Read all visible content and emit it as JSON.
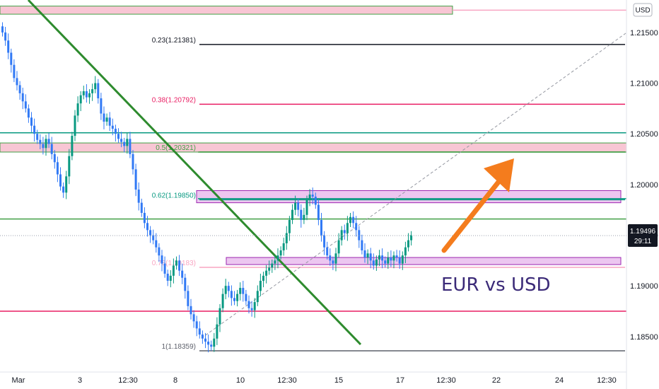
{
  "chart_data": {
    "type": "candlestick",
    "title": "",
    "currency": "USD",
    "annotation": "EUR vs USD",
    "ylim": [
      1.1815,
      1.2182
    ],
    "y_ticks": [
      "1.21500",
      "1.21000",
      "1.20500",
      "1.20000",
      "1.19500",
      "1.19000",
      "1.18500"
    ],
    "x_ticks": [
      "Mar",
      "3",
      "12:30",
      "8",
      "10",
      "12:30",
      "15",
      "17",
      "12:30",
      "22",
      "24",
      "12:30"
    ],
    "last_price": "1.19496",
    "countdown": "29:11",
    "fib_levels": [
      {
        "label": "0.23(1.21381)",
        "value": 1.21381,
        "color": "#131722"
      },
      {
        "label": "0.38(1.20792)",
        "value": 1.20792,
        "color": "#e91e63"
      },
      {
        "label": "0.5(1.20321)",
        "value": 1.20321,
        "color": "#43a047"
      },
      {
        "label": "0.62(1.19850)",
        "value": 1.1985,
        "color": "#089981"
      },
      {
        "label": "0.78(1.19183)",
        "value": 1.19183,
        "color": "#f8a5c2"
      },
      {
        "label": "1(1.18359)",
        "value": 1.18359,
        "color": "#5d606b"
      }
    ],
    "horizontal_levels": [
      {
        "value": 1.2172,
        "color": "#f8a5c2"
      },
      {
        "value": 1.2051,
        "color": "#089981"
      },
      {
        "value": 1.2032,
        "color": "#43a047"
      },
      {
        "value": 1.1986,
        "color": "#089981"
      },
      {
        "value": 1.1966,
        "color": "#43a047"
      },
      {
        "value": 1.1875,
        "color": "#e91e63"
      }
    ],
    "zones": [
      {
        "from": 1.2168,
        "to": 1.2176,
        "fill": "#f8c6d4",
        "stroke": "#43a047"
      },
      {
        "from": 1.2032,
        "to": 1.2041,
        "fill": "#f8c6d4",
        "stroke": "#43a047"
      },
      {
        "from": 1.1982,
        "to": 1.1994,
        "fill": "#ecc6f0",
        "stroke": "#9c27b0"
      },
      {
        "from": 1.1921,
        "to": 1.1928,
        "fill": "#ecc6f0",
        "stroke": "#9c27b0"
      }
    ],
    "close_series": [
      1.215,
      1.2142,
      1.213,
      1.2118,
      1.2105,
      1.2098,
      1.209,
      1.2082,
      1.2075,
      1.2066,
      1.2058,
      1.205,
      1.2044,
      1.204,
      1.2036,
      1.2045,
      1.204,
      1.203,
      1.2022,
      1.201,
      1.1998,
      1.1992,
      1.2008,
      1.2028,
      1.2048,
      1.2068,
      1.208,
      1.2088,
      1.2092,
      1.2086,
      1.209,
      1.2094,
      1.21,
      1.2085,
      1.207,
      1.2062,
      1.2066,
      1.2058,
      1.2055,
      1.205,
      1.2045,
      1.2042,
      1.2038,
      1.2045,
      1.203,
      1.2015,
      1.1995,
      1.1982,
      1.1972,
      1.1962,
      1.1955,
      1.195,
      1.1945,
      1.1938,
      1.193,
      1.1922,
      1.1912,
      1.1905,
      1.191,
      1.192,
      1.1925,
      1.1915,
      1.1908,
      1.1895,
      1.188,
      1.1872,
      1.1865,
      1.1858,
      1.1852,
      1.1848,
      1.1845,
      1.1842,
      1.184,
      1.1848,
      1.1862,
      1.1878,
      1.1892,
      1.19,
      1.1895,
      1.1888,
      1.1885,
      1.1892,
      1.1898,
      1.1892,
      1.1885,
      1.1878,
      1.1876,
      1.1884,
      1.1895,
      1.1905,
      1.191,
      1.1915,
      1.1918,
      1.1922,
      1.1925,
      1.193,
      1.1935,
      1.1942,
      1.1952,
      1.1965,
      1.1975,
      1.1982,
      1.1975,
      1.1965,
      1.197,
      1.1985,
      1.199,
      1.1988,
      1.198,
      1.1965,
      1.195,
      1.1938,
      1.193,
      1.1925,
      1.1922,
      1.1932,
      1.1945,
      1.1955,
      1.1952,
      1.1962,
      1.1968,
      1.1962,
      1.1955,
      1.1945,
      1.1935,
      1.1928,
      1.1932,
      1.1925,
      1.192,
      1.1926,
      1.193,
      1.1925,
      1.1922,
      1.1928,
      1.1925,
      1.193,
      1.1928,
      1.1922,
      1.193,
      1.1938,
      1.1945,
      1.195
    ]
  }
}
